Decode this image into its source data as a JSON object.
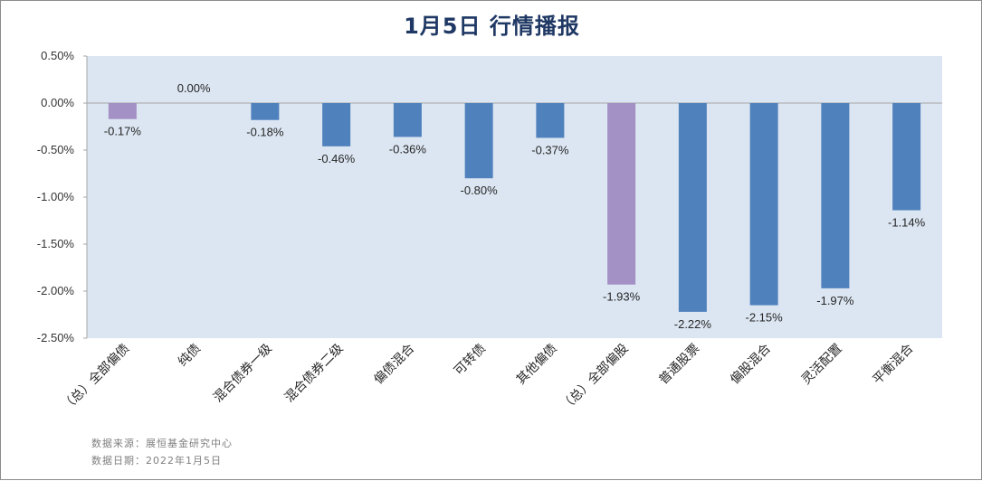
{
  "title": "1月5日  行情播报",
  "footer": {
    "source": "数据来源：展恒基金研究中心",
    "date": "数据日期：2022年1月5日"
  },
  "colors": {
    "plot_bg": "#dce6f2",
    "bar": "#4f81bd",
    "bar_highlight": "#a390c4",
    "title": "#1f3864"
  },
  "chart_data": {
    "type": "bar",
    "title": "1月5日  行情播报",
    "xlabel": "",
    "ylabel": "",
    "ylim": [
      -2.5,
      0.5
    ],
    "yticks": [
      0.5,
      0.0,
      -0.5,
      -1.0,
      -1.5,
      -2.0,
      -2.5
    ],
    "ytick_labels": [
      "0.50%",
      "0.00%",
      "-0.50%",
      "-1.00%",
      "-1.50%",
      "-2.00%",
      "-2.50%"
    ],
    "grid": false,
    "categories": [
      "（总）全部偏债",
      "纯债",
      "混合债券一级",
      "混合债券二级",
      "偏债混合",
      "可转债",
      "其他偏债",
      "（总）全部偏股",
      "普通股票",
      "偏股混合",
      "灵活配置",
      "平衡混合"
    ],
    "values": [
      -0.17,
      0.0,
      -0.18,
      -0.46,
      -0.36,
      -0.8,
      -0.37,
      -1.93,
      -2.22,
      -2.15,
      -1.97,
      -1.14
    ],
    "data_labels": [
      "-0.17%",
      "0.00%",
      "-0.18%",
      "-0.46%",
      "-0.36%",
      "-0.80%",
      "-0.37%",
      "-1.93%",
      "-2.22%",
      "-2.15%",
      "-1.97%",
      "-1.14%"
    ],
    "highlight": [
      true,
      false,
      false,
      false,
      false,
      false,
      false,
      true,
      false,
      false,
      false,
      false
    ]
  }
}
